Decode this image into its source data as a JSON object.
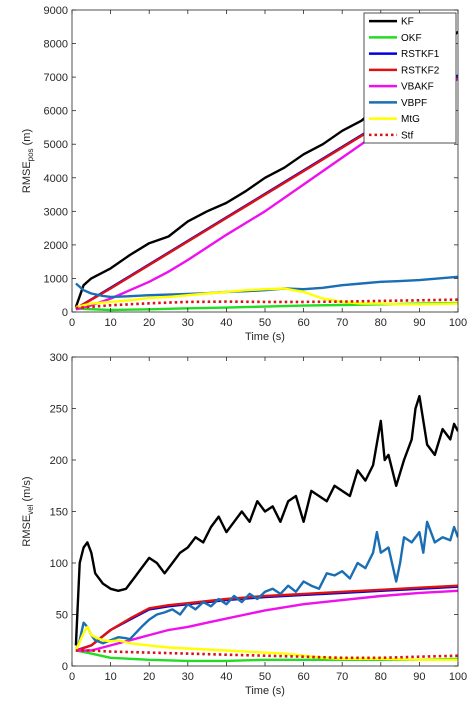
{
  "chart_data": [
    {
      "type": "line",
      "xlabel": "Time (s)",
      "ylabel": {
        "main": "RMSE",
        "sub": "pos",
        "unit": "(m)"
      },
      "xlim": [
        0,
        100
      ],
      "ylim": [
        0,
        9000
      ],
      "xticks": [
        0,
        10,
        20,
        30,
        40,
        50,
        60,
        70,
        80,
        90,
        100
      ],
      "yticks": [
        0,
        1000,
        2000,
        3000,
        4000,
        5000,
        6000,
        7000,
        8000,
        9000
      ],
      "legend_position": "top-right",
      "series": [
        {
          "name": "KF",
          "color": "#000000",
          "dash": "solid",
          "x": [
            1,
            3,
            5,
            10,
            15,
            20,
            25,
            30,
            35,
            40,
            45,
            50,
            55,
            60,
            65,
            70,
            75,
            80,
            85,
            90,
            95,
            98,
            100
          ],
          "y": [
            150,
            800,
            1000,
            1300,
            1700,
            2050,
            2250,
            2700,
            3000,
            3250,
            3600,
            4000,
            4300,
            4700,
            5000,
            5400,
            5700,
            6200,
            6650,
            7150,
            7650,
            8150,
            8350
          ]
        },
        {
          "name": "OKF",
          "color": "#22dd22",
          "dash": "solid",
          "x": [
            1,
            10,
            20,
            30,
            40,
            50,
            60,
            70,
            80,
            90,
            100
          ],
          "y": [
            100,
            60,
            80,
            110,
            130,
            160,
            190,
            210,
            230,
            250,
            270
          ]
        },
        {
          "name": "RSTKF1",
          "color": "#0000dd",
          "dash": "solid",
          "x": [
            1,
            10,
            20,
            30,
            40,
            50,
            60,
            70,
            80,
            90,
            100
          ],
          "y": [
            100,
            720,
            1420,
            2120,
            2820,
            3520,
            4220,
            4920,
            5620,
            6320,
            7050
          ]
        },
        {
          "name": "RSTKF2",
          "color": "#dd1111",
          "dash": "solid",
          "x": [
            1,
            10,
            20,
            30,
            40,
            50,
            60,
            70,
            80,
            90,
            100
          ],
          "y": [
            100,
            700,
            1400,
            2100,
            2800,
            3500,
            4200,
            4900,
            5600,
            6300,
            7000
          ]
        },
        {
          "name": "VBAKF",
          "color": "#ee11ee",
          "dash": "solid",
          "x": [
            1,
            5,
            10,
            15,
            20,
            25,
            30,
            40,
            50,
            60,
            70,
            80,
            90,
            100
          ],
          "y": [
            80,
            200,
            400,
            650,
            900,
            1200,
            1550,
            2300,
            3000,
            3800,
            4600,
            5400,
            6200,
            6950
          ]
        },
        {
          "name": "VBPF",
          "color": "#1a6eb4",
          "dash": "solid",
          "x": [
            1,
            3,
            5,
            8,
            10,
            15,
            20,
            25,
            30,
            35,
            40,
            45,
            50,
            55,
            60,
            65,
            70,
            75,
            80,
            85,
            90,
            95,
            100
          ],
          "y": [
            850,
            650,
            550,
            480,
            450,
            470,
            500,
            520,
            540,
            560,
            600,
            620,
            650,
            700,
            680,
            720,
            800,
            850,
            900,
            920,
            950,
            1000,
            1050
          ]
        },
        {
          "name": "MtG",
          "color": "#ffff00",
          "dash": "solid",
          "x": [
            1,
            5,
            10,
            15,
            20,
            25,
            30,
            35,
            40,
            45,
            50,
            55,
            60,
            65,
            70,
            75,
            80,
            85,
            90,
            95,
            100
          ],
          "y": [
            150,
            250,
            300,
            350,
            420,
            450,
            500,
            550,
            600,
            650,
            680,
            700,
            600,
            400,
            300,
            250,
            250,
            230,
            230,
            240,
            250
          ]
        },
        {
          "name": "Stf",
          "color": "#dd1111",
          "dash": "dotted",
          "x": [
            1,
            10,
            20,
            30,
            40,
            50,
            60,
            70,
            80,
            90,
            100
          ],
          "y": [
            120,
            200,
            260,
            300,
            310,
            300,
            300,
            310,
            330,
            350,
            370
          ]
        }
      ]
    },
    {
      "type": "line",
      "xlabel": "Time (s)",
      "ylabel": {
        "main": "RMSE",
        "sub": "vel",
        "unit": "(m/s)"
      },
      "xlim": [
        0,
        100
      ],
      "ylim": [
        0,
        300
      ],
      "xticks": [
        0,
        10,
        20,
        30,
        40,
        50,
        60,
        70,
        80,
        90,
        100
      ],
      "yticks": [
        0,
        50,
        100,
        150,
        200,
        250,
        300
      ],
      "series": [
        {
          "name": "KF",
          "color": "#000000",
          "dash": "solid",
          "x": [
            1,
            2,
            3,
            4,
            5,
            6,
            8,
            10,
            12,
            14,
            15,
            16,
            18,
            20,
            22,
            24,
            26,
            28,
            30,
            32,
            34,
            36,
            38,
            40,
            42,
            44,
            46,
            48,
            50,
            52,
            54,
            56,
            58,
            60,
            62,
            64,
            66,
            68,
            70,
            72,
            74,
            76,
            78,
            80,
            81,
            82,
            84,
            86,
            88,
            89,
            90,
            92,
            94,
            96,
            98,
            99,
            100
          ],
          "y": [
            20,
            100,
            115,
            120,
            110,
            90,
            80,
            75,
            73,
            75,
            80,
            85,
            95,
            105,
            100,
            90,
            100,
            110,
            115,
            125,
            120,
            135,
            145,
            130,
            140,
            150,
            140,
            160,
            150,
            155,
            140,
            160,
            165,
            140,
            170,
            165,
            160,
            175,
            170,
            165,
            190,
            180,
            195,
            238,
            200,
            205,
            175,
            200,
            220,
            250,
            262,
            215,
            205,
            230,
            220,
            235,
            228
          ]
        },
        {
          "name": "OKF",
          "color": "#22dd22",
          "dash": "solid",
          "x": [
            1,
            5,
            10,
            15,
            20,
            30,
            40,
            50,
            60,
            70,
            80,
            90,
            100
          ],
          "y": [
            15,
            12,
            8,
            7,
            6,
            5,
            5,
            6,
            6,
            6,
            6,
            6,
            7
          ]
        },
        {
          "name": "RSTKF1",
          "color": "#0000dd",
          "dash": "solid",
          "x": [
            1,
            5,
            10,
            15,
            20,
            25,
            30,
            40,
            50,
            60,
            70,
            80,
            90,
            100
          ],
          "y": [
            15,
            20,
            35,
            45,
            55,
            58,
            60,
            64,
            67,
            69,
            71,
            73,
            75,
            77
          ]
        },
        {
          "name": "RSTKF2",
          "color": "#dd1111",
          "dash": "solid",
          "x": [
            1,
            5,
            10,
            15,
            20,
            25,
            30,
            40,
            50,
            60,
            70,
            80,
            90,
            100
          ],
          "y": [
            15,
            20,
            35,
            46,
            56,
            59,
            61,
            65,
            68,
            70,
            72,
            74,
            76,
            78
          ]
        },
        {
          "name": "VBAKF",
          "color": "#ee11ee",
          "dash": "solid",
          "x": [
            1,
            5,
            10,
            15,
            20,
            25,
            30,
            35,
            40,
            45,
            50,
            60,
            70,
            80,
            90,
            100
          ],
          "y": [
            15,
            15,
            20,
            25,
            30,
            35,
            38,
            42,
            46,
            50,
            54,
            60,
            64,
            68,
            71,
            73
          ]
        },
        {
          "name": "VBPF",
          "color": "#1a6eb4",
          "dash": "solid",
          "x": [
            1,
            2,
            3,
            4,
            5,
            6,
            8,
            10,
            12,
            14,
            15,
            16,
            18,
            20,
            22,
            24,
            26,
            28,
            30,
            32,
            34,
            36,
            38,
            40,
            42,
            44,
            46,
            48,
            50,
            52,
            54,
            56,
            58,
            60,
            62,
            64,
            66,
            68,
            70,
            72,
            74,
            76,
            78,
            79,
            80,
            82,
            84,
            85,
            86,
            88,
            90,
            91,
            92,
            94,
            96,
            98,
            99,
            100
          ],
          "y": [
            15,
            25,
            42,
            38,
            30,
            25,
            22,
            25,
            28,
            27,
            26,
            30,
            38,
            45,
            50,
            52,
            55,
            50,
            60,
            55,
            62,
            58,
            65,
            60,
            68,
            62,
            70,
            65,
            72,
            75,
            70,
            78,
            72,
            82,
            78,
            75,
            90,
            88,
            92,
            85,
            100,
            95,
            110,
            130,
            110,
            115,
            82,
            100,
            125,
            120,
            130,
            110,
            140,
            120,
            125,
            122,
            135,
            125
          ]
        },
        {
          "name": "MtG",
          "color": "#ffff00",
          "dash": "solid",
          "x": [
            1,
            3,
            4,
            5,
            6,
            8,
            10,
            12,
            15,
            20,
            25,
            30,
            35,
            40,
            45,
            50,
            55,
            60,
            65,
            70,
            80,
            90,
            100
          ],
          "y": [
            15,
            32,
            38,
            30,
            28,
            25,
            24,
            25,
            22,
            20,
            18,
            17,
            16,
            15,
            14,
            13,
            12,
            10,
            8,
            7,
            7,
            6,
            6
          ]
        },
        {
          "name": "Stf",
          "color": "#dd1111",
          "dash": "dotted",
          "x": [
            1,
            5,
            10,
            20,
            30,
            40,
            50,
            60,
            70,
            80,
            90,
            100
          ],
          "y": [
            15,
            15,
            14,
            13,
            12,
            11,
            10,
            9,
            8,
            8,
            9,
            10
          ]
        }
      ]
    }
  ]
}
